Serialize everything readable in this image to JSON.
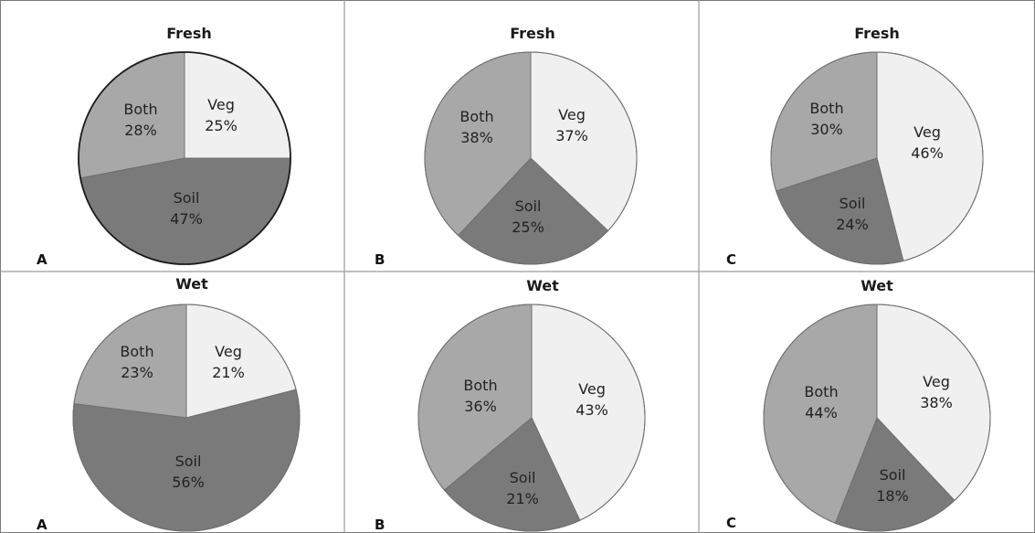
{
  "chart_data": [
    {
      "type": "pie",
      "panel": "A",
      "title": "Fresh",
      "slices": [
        {
          "label": "Veg",
          "pct": "25%",
          "value": 25
        },
        {
          "label": "Soil",
          "pct": "47%",
          "value": 47
        },
        {
          "label": "Both",
          "pct": "28%",
          "value": 28
        }
      ]
    },
    {
      "type": "pie",
      "panel": "B",
      "title": "Fresh",
      "slices": [
        {
          "label": "Veg",
          "pct": "37%",
          "value": 37
        },
        {
          "label": "Soil",
          "pct": "25%",
          "value": 25
        },
        {
          "label": "Both",
          "pct": "38%",
          "value": 38
        }
      ]
    },
    {
      "type": "pie",
      "panel": "C",
      "title": "Fresh",
      "slices": [
        {
          "label": "Veg",
          "pct": "46%",
          "value": 46
        },
        {
          "label": "Soil",
          "pct": "24%",
          "value": 24
        },
        {
          "label": "Both",
          "pct": "30%",
          "value": 30
        }
      ]
    },
    {
      "type": "pie",
      "panel": "A",
      "title": "Wet",
      "slices": [
        {
          "label": "Veg",
          "pct": "21%",
          "value": 21
        },
        {
          "label": "Soil",
          "pct": "56%",
          "value": 56
        },
        {
          "label": "Both",
          "pct": "23%",
          "value": 23
        }
      ]
    },
    {
      "type": "pie",
      "panel": "B",
      "title": "Wet",
      "slices": [
        {
          "label": "Veg",
          "pct": "43%",
          "value": 43
        },
        {
          "label": "Soil",
          "pct": "21%",
          "value": 21
        },
        {
          "label": "Both",
          "pct": "36%",
          "value": 36
        }
      ]
    },
    {
      "type": "pie",
      "panel": "C",
      "title": "Wet",
      "slices": [
        {
          "label": "Veg",
          "pct": "38%",
          "value": 38
        },
        {
          "label": "Soil",
          "pct": "18%",
          "value": 18
        },
        {
          "label": "Both",
          "pct": "44%",
          "value": 44
        }
      ]
    }
  ],
  "colors": {
    "Veg": "#f0f0f0",
    "Soil": "#7a7a7a",
    "Both": "#a8a8a8",
    "border": "#6f6f6f",
    "grid": "#9a9a9a"
  }
}
